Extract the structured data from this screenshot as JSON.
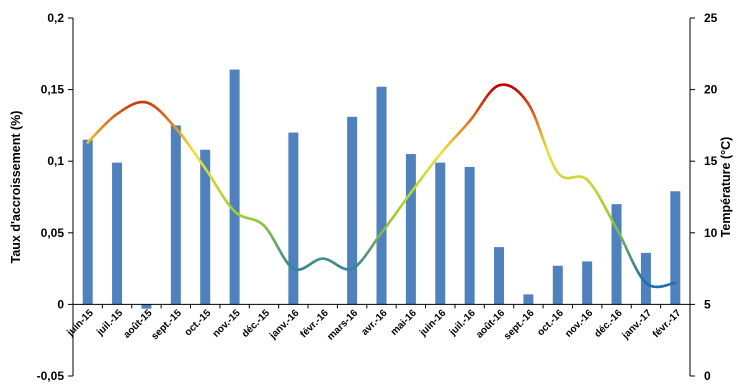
{
  "chart_data": {
    "type": "bar+line",
    "categories": [
      "juin-15",
      "juil.-15",
      "août-15",
      "sept.-15",
      "oct.-15",
      "nov.-15",
      "déc.-15",
      "janv.-16",
      "févr.-16",
      "mars-16",
      "avr.-16",
      "mai-16",
      "juin-16",
      "juil.-16",
      "août-16",
      "sept.-16",
      "oct.-16",
      "nov.-16",
      "déc.-16",
      "janv.-17",
      "févr.-17"
    ],
    "series": [
      {
        "name": "Taux d'accroissement (%)",
        "type": "bar",
        "axis": "left",
        "color": "#4F81BD",
        "values": [
          0.115,
          0.099,
          -0.003,
          0.125,
          0.108,
          0.164,
          null,
          0.12,
          null,
          0.131,
          0.152,
          0.105,
          0.099,
          0.096,
          0.04,
          0.007,
          0.027,
          0.03,
          0.07,
          0.036,
          0.079
        ]
      },
      {
        "name": "Température (°C)",
        "type": "line",
        "axis": "right",
        "colors": [
          "#C00000",
          "#F0E040",
          "#9ACD32",
          "#1F6FB0"
        ],
        "values": [
          16.3,
          18.3,
          19.1,
          17.3,
          14.5,
          11.5,
          10.5,
          7.5,
          8.2,
          7.5,
          10.0,
          12.8,
          15.5,
          17.8,
          20.3,
          19.0,
          14.2,
          13.7,
          10.3,
          6.5,
          6.5
        ]
      }
    ],
    "y_left": {
      "label": "Taux d'accroissement (%)",
      "min": -0.05,
      "max": 0.2,
      "step": 0.05,
      "tick_labels": [
        "-0,05",
        "0",
        "0,05",
        "0,1",
        "0,15",
        "0,2"
      ]
    },
    "y_right": {
      "label": "Température (°C)",
      "min": 0,
      "max": 25,
      "step": 5,
      "tick_labels": [
        "0",
        "5",
        "10",
        "15",
        "20",
        "25"
      ]
    },
    "grid": false,
    "legend": "none"
  }
}
